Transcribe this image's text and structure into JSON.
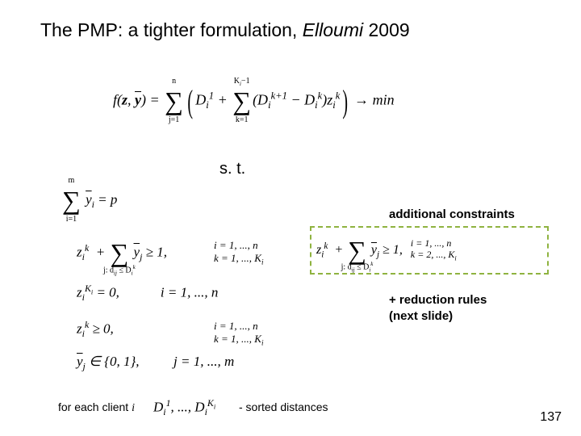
{
  "title_prefix": "The PMP: a tighter formulation, ",
  "title_italic": "Elloumi",
  "title_year": " 2009",
  "st": "s. t.",
  "objective_html": "f(<b>z</b>, <span class=\"bar\"><b>y</b></span>) = <span class=\"big-sum\">∑<span class=\"sum-top\">n</span><span class=\"sum-bot\">j=1</span></span><span class=\"paren\">(</span>D<sub>i</sub><sup>1</sup> + <span class=\"big-sum\">∑<span class=\"sum-top\">K<sub>i</sub>−1</span><span class=\"sum-bot\">k=1</span></span>(D<sub>i</sub><sup>k+1</sup> − D<sub>i</sub><sup>k</sup>)z<sub>i</sub><sup>k</sup><span class=\"paren\">)</span> → min",
  "c1_html": "<span class=\"big-sum\">∑<span class=\"sum-top\">m</span><span class=\"sum-bot\">i=1</span></span> <span class=\"bar\">y</span><sub>i</sub> = p",
  "c2_html": "z<sub>i</sub><sup>k</sup> &nbsp;+ <span class=\"big-sum\">∑<span class=\"sum-bot\">j: d<sub>ij</sub> ≤ D<sub>i</sub><sup>k</sup></span></span> <span class=\"bar\">y</span><sub>j</sub> ≥ 1,",
  "c2_range_html": "i = 1, ..., n<br>k = 1, ..., K<sub>i</sub>",
  "c3_html": "z<sub>i</sub><sup>K<sub>i</sub></sup> = 0, &nbsp;&nbsp;&nbsp;&nbsp;&nbsp;&nbsp;&nbsp;&nbsp;&nbsp;&nbsp; i = 1, ..., n",
  "c4_html": "z<sub>i</sub><sup>k</sup> ≥ 0,",
  "c4_range_html": "i = 1, ..., n<br>k = 1, ..., K<sub>i</sub>",
  "c5_html": "<span class=\"bar\">y</span><sub>j</sub> ∈ {0, 1}, &nbsp;&nbsp;&nbsp;&nbsp;&nbsp;&nbsp;&nbsp;&nbsp; j = 1, ..., m",
  "highlight_html": "z<sub>i</sub><sup>k</sup> &nbsp;+ <span class=\"big-sum\">∑<span class=\"sum-bot\">j: d<sub>ij</sub> ≤ D<sub>i</sub><sup>k</sup></span></span> <span class=\"bar\">y</span><sub>j</sub> ≥ 1,",
  "highlight_range_html": "i = 1, ..., n<br>k = 2, ..., K<sub>i</sub>",
  "add_constraints": "additional constraints",
  "reduction": "+ reduction rules\n(next slide)",
  "client_text": "for each client ",
  "client_i": "i",
  "sorted_d_html": "D<sub>i</sub><sup>1</sup>, ..., D<sub>i</sub><sup>K<sub>i</sub></sup>",
  "sorted_label": "- sorted distances",
  "page": "137",
  "colors": {
    "highlight_border": "#8fb340",
    "text": "#000000",
    "bg": "#ffffff"
  }
}
